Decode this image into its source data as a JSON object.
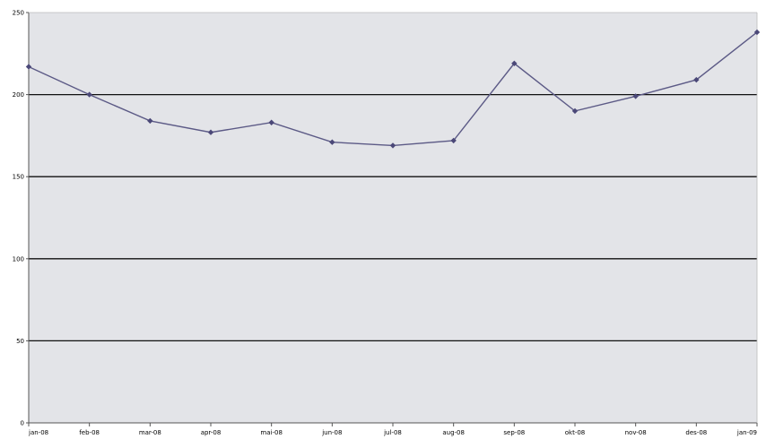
{
  "chart_data": {
    "type": "line",
    "title": "",
    "xlabel": "",
    "ylabel": "",
    "categories": [
      "jan-08",
      "feb-08",
      "mar-08",
      "apr-08",
      "mai-08",
      "jun-08",
      "jul-08",
      "aug-08",
      "sep-08",
      "okt-08",
      "nov-08",
      "des-08",
      "jan-09"
    ],
    "series": [
      {
        "values": [
          217,
          200,
          184,
          177,
          183,
          171,
          169,
          172,
          219,
          190,
          199,
          209,
          238
        ]
      }
    ],
    "ylim": [
      0,
      250
    ],
    "yticks": [
      "0",
      "50",
      "100",
      "150",
      "200",
      "250"
    ],
    "grid": true,
    "legend": "none",
    "colors": {
      "plot_background": "#e3e4e8",
      "series_line": "#5c5a86",
      "series_marker": "#4b4878",
      "gridline": "#111111",
      "axis": "#555555"
    }
  }
}
